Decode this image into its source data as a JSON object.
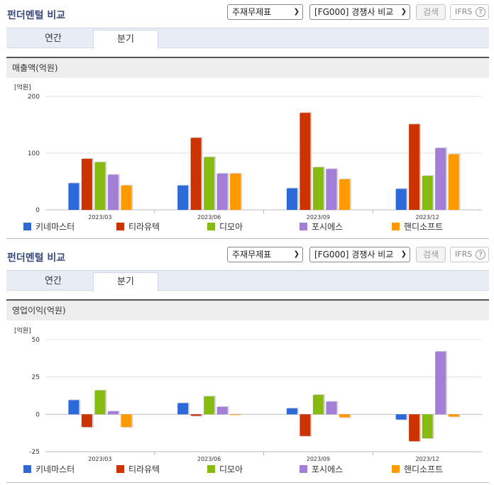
{
  "panels": [
    {
      "title": "펀더멘털 비교",
      "select1": "주재무제표",
      "select2": "[FG000] 경쟁사 비교",
      "search_label": "검색",
      "ifrs_label": "IFRS",
      "help_label": "?",
      "tabs": [
        {
          "label": "연간",
          "active": false
        },
        {
          "label": "분기",
          "active": true
        }
      ],
      "metric_label": "매출액(억원)"
    },
    {
      "title": "펀더멘털 비교",
      "select1": "주재무제표",
      "select2": "[FG000] 경쟁사 비교",
      "search_label": "검색",
      "ifrs_label": "IFRS",
      "help_label": "?",
      "tabs": [
        {
          "label": "연간",
          "active": false
        },
        {
          "label": "분기",
          "active": true
        }
      ],
      "metric_label": "영업이익(억원)"
    }
  ],
  "chart_data": [
    {
      "type": "bar",
      "unit_label": "[억원]",
      "categories": [
        "2023/03",
        "2023/06",
        "2023/09",
        "2023/12"
      ],
      "ylim": [
        0,
        200
      ],
      "yticks": [
        "0",
        "100",
        "200"
      ],
      "grid": true,
      "legend_position": "bottom",
      "series": [
        {
          "name": "키네마스터",
          "color": "#2b6ad8",
          "values": [
            47,
            43,
            38,
            37
          ]
        },
        {
          "name": "티라유텍",
          "color": "#cc3300",
          "values": [
            90,
            127,
            171,
            151
          ]
        },
        {
          "name": "디모아",
          "color": "#88bb11",
          "values": [
            84,
            93,
            75,
            60
          ]
        },
        {
          "name": "포시에스",
          "color": "#a27ed6",
          "values": [
            62,
            64,
            72,
            109
          ]
        },
        {
          "name": "핸디소프트",
          "color": "#ff9900",
          "values": [
            43,
            64,
            54,
            98
          ]
        }
      ]
    },
    {
      "type": "bar",
      "unit_label": "[억원]",
      "categories": [
        "2023/03",
        "2023/06",
        "2023/09",
        "2023/12"
      ],
      "ylim": [
        -25,
        50
      ],
      "yticks": [
        "-25",
        "0",
        "25",
        "50"
      ],
      "grid": true,
      "legend_position": "bottom",
      "series": [
        {
          "name": "키네마스터",
          "color": "#2b6ad8",
          "values": [
            9.5,
            7.5,
            4,
            -3.5
          ]
        },
        {
          "name": "티라유텍",
          "color": "#cc3300",
          "values": [
            -8.5,
            -1,
            -14.5,
            -18
          ]
        },
        {
          "name": "디모아",
          "color": "#88bb11",
          "values": [
            16,
            12,
            13,
            -16
          ]
        },
        {
          "name": "포시에스",
          "color": "#a27ed6",
          "values": [
            2,
            5,
            8.5,
            42
          ]
        },
        {
          "name": "핸디소프트",
          "color": "#ff9900",
          "values": [
            -8.5,
            0,
            -2,
            -1.5
          ]
        }
      ]
    }
  ]
}
